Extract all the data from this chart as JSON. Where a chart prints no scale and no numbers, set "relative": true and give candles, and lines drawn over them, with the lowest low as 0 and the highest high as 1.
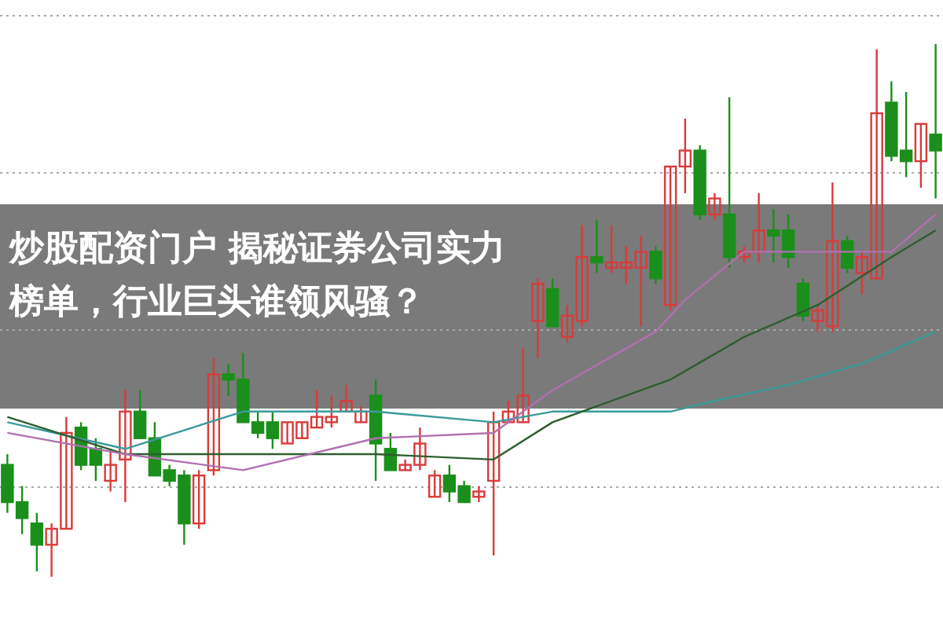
{
  "chart_data": {
    "type": "candlestick",
    "relative": true,
    "grid": "y",
    "title": "炒股配资门户 揭秘证券公司实力榜单，行业巨头谁领风骚？",
    "categories": [
      null,
      null,
      null,
      null,
      null,
      null,
      null,
      null,
      null,
      null,
      null,
      null,
      null,
      null,
      null,
      null,
      null,
      null,
      null,
      null,
      null,
      null,
      null,
      null,
      null,
      null,
      null,
      null,
      null,
      null,
      null,
      null,
      null,
      null,
      null,
      null,
      null,
      null,
      null,
      null,
      null,
      null,
      null,
      null,
      null,
      null,
      null,
      null,
      null,
      null,
      null,
      null,
      null,
      null,
      null,
      null,
      null,
      null,
      null,
      null,
      null,
      null,
      null,
      null
    ],
    "ohlc": [
      [
        0.21,
        0.23,
        0.12,
        0.14
      ],
      [
        0.14,
        0.17,
        0.08,
        0.11
      ],
      [
        0.1,
        0.12,
        0.01,
        0.06
      ],
      [
        0.06,
        0.1,
        0,
        0.09
      ],
      [
        0.09,
        0.3,
        0.09,
        0.27
      ],
      [
        0.28,
        0.29,
        0.2,
        0.21
      ],
      [
        0.24,
        0.26,
        0.18,
        0.21
      ],
      [
        0.18,
        0.24,
        0.16,
        0.21
      ],
      [
        0.22,
        0.35,
        0.14,
        0.31
      ],
      [
        0.31,
        0.35,
        0.26,
        0.26
      ],
      [
        0.26,
        0.29,
        0.19,
        0.19
      ],
      [
        0.2,
        0.21,
        0.17,
        0.18
      ],
      [
        0.19,
        0.2,
        0.06,
        0.1
      ],
      [
        0.1,
        0.2,
        0.09,
        0.19
      ],
      [
        0.2,
        0.41,
        0.19,
        0.38
      ],
      [
        0.38,
        0.4,
        0.34,
        0.37
      ],
      [
        0.37,
        0.42,
        0.29,
        0.29
      ],
      [
        0.29,
        0.31,
        0.26,
        0.27
      ],
      [
        0.29,
        0.31,
        0.24,
        0.26
      ],
      [
        0.25,
        0.29,
        0.25,
        0.29
      ],
      [
        0.26,
        0.29,
        0.26,
        0.29
      ],
      [
        0.28,
        0.35,
        0.28,
        0.3
      ],
      [
        0.29,
        0.34,
        0.28,
        0.3
      ],
      [
        0.31,
        0.36,
        0.31,
        0.33
      ],
      [
        0.29,
        0.32,
        0.29,
        0.31
      ],
      [
        0.34,
        0.37,
        0.18,
        0.25
      ],
      [
        0.24,
        0.27,
        0.2,
        0.2
      ],
      [
        0.2,
        0.22,
        0.2,
        0.21
      ],
      [
        0.21,
        0.28,
        0.2,
        0.25
      ],
      [
        0.15,
        0.2,
        0.15,
        0.19
      ],
      [
        0.19,
        0.21,
        0.14,
        0.16
      ],
      [
        0.17,
        0.18,
        0.14,
        0.14
      ],
      [
        0.15,
        0.17,
        0.14,
        0.16
      ],
      [
        0.18,
        0.31,
        0.04,
        0.29
      ],
      [
        0.29,
        0.33,
        0.29,
        0.31
      ],
      [
        0.29,
        0.43,
        0.29,
        0.34
      ],
      [
        0.48,
        0.56,
        0.41,
        0.55
      ],
      [
        0.54,
        0.56,
        0.47,
        0.47
      ],
      [
        0.45,
        0.51,
        0.44,
        0.49
      ],
      [
        0.48,
        0.66,
        0.47,
        0.6
      ],
      [
        0.6,
        0.67,
        0.57,
        0.59
      ],
      [
        0.58,
        0.66,
        0.57,
        0.59
      ],
      [
        0.58,
        0.62,
        0.55,
        0.59
      ],
      [
        0.58,
        0.64,
        0.47,
        0.61
      ],
      [
        0.61,
        0.62,
        0.55,
        0.56
      ],
      [
        0.51,
        0.77,
        0.5,
        0.77
      ],
      [
        0.77,
        0.86,
        0.72,
        0.8
      ],
      [
        0.8,
        0.81,
        0.67,
        0.68
      ],
      [
        0.68,
        0.72,
        0.67,
        0.71
      ],
      [
        0.68,
        0.9,
        0.58,
        0.6
      ],
      [
        0.6,
        0.62,
        0.59,
        0.61
      ],
      [
        0.61,
        0.72,
        0.59,
        0.65
      ],
      [
        0.65,
        0.69,
        0.59,
        0.64
      ],
      [
        0.65,
        0.68,
        0.58,
        0.6
      ],
      [
        0.55,
        0.56,
        0.48,
        0.49
      ],
      [
        0.48,
        0.51,
        0.46,
        0.5
      ],
      [
        0.47,
        0.74,
        0.46,
        0.63
      ],
      [
        0.63,
        0.64,
        0.57,
        0.58
      ],
      [
        0.57,
        0.61,
        0.53,
        0.6
      ],
      [
        0.56,
        0.99,
        0.56,
        0.87
      ],
      [
        0.89,
        0.93,
        0.78,
        0.79
      ],
      [
        0.8,
        0.91,
        0.75,
        0.78
      ],
      [
        0.78,
        0.85,
        0.73,
        0.85
      ],
      [
        0.83,
        1.0,
        0.71,
        0.8
      ]
    ],
    "colors": [
      "#1b8f1b",
      "#1b8f1b",
      "#1b8f1b",
      "#d93b3b",
      "#d93b3b",
      "#1b8f1b",
      "#1b8f1b",
      "#d93b3b",
      "#d93b3b",
      "#1b8f1b",
      "#1b8f1b",
      "#1b8f1b",
      "#1b8f1b",
      "#d93b3b",
      "#d93b3b",
      "#1b8f1b",
      "#1b8f1b",
      "#1b8f1b",
      "#1b8f1b",
      "#d93b3b",
      "#d93b3b",
      "#d93b3b",
      "#d93b3b",
      "#d93b3b",
      "#d93b3b",
      "#1b8f1b",
      "#1b8f1b",
      "#d93b3b",
      "#d93b3b",
      "#d93b3b",
      "#1b8f1b",
      "#1b8f1b",
      "#d93b3b",
      "#d93b3b",
      "#d93b3b",
      "#d93b3b",
      "#d93b3b",
      "#1b8f1b",
      "#d93b3b",
      "#d93b3b",
      "#1b8f1b",
      "#d93b3b",
      "#d93b3b",
      "#d93b3b",
      "#1b8f1b",
      "#d93b3b",
      "#d93b3b",
      "#1b8f1b",
      "#d93b3b",
      "#1b8f1b",
      "#d93b3b",
      "#d93b3b",
      "#1b8f1b",
      "#1b8f1b",
      "#1b8f1b",
      "#d93b3b",
      "#d93b3b",
      "#1b8f1b",
      "#d93b3b",
      "#d93b3b",
      "#1b8f1b",
      "#1b8f1b",
      "#d93b3b",
      "#1b8f1b"
    ],
    "series": [
      {
        "type": "line",
        "color": "#3a9a9a",
        "values": [
          0.29,
          null,
          null,
          null,
          null,
          null,
          null,
          null,
          0.24,
          null,
          null,
          null,
          null,
          null,
          null,
          null,
          0.31,
          null,
          null,
          null,
          null,
          null,
          null,
          null,
          null,
          0.31,
          null,
          null,
          null,
          null,
          null,
          null,
          null,
          0.29,
          null,
          null,
          null,
          0.31,
          null,
          null,
          null,
          null,
          null,
          null,
          null,
          0.31,
          null,
          null,
          0.33,
          null,
          null,
          null,
          null,
          0.36,
          null,
          null,
          null,
          null,
          0.4,
          null,
          null,
          null,
          null,
          0.46
        ]
      },
      {
        "type": "line",
        "color": "#2e5e2e",
        "values": [
          0.3,
          null,
          null,
          null,
          null,
          null,
          null,
          null,
          0.23,
          null,
          null,
          null,
          null,
          null,
          null,
          null,
          0.23,
          null,
          null,
          null,
          null,
          null,
          null,
          null,
          null,
          0.23,
          null,
          null,
          null,
          null,
          null,
          null,
          null,
          0.22,
          null,
          null,
          null,
          0.29,
          null,
          null,
          null,
          null,
          null,
          null,
          null,
          0.37,
          null,
          null,
          null,
          null,
          0.45,
          null,
          null,
          null,
          null,
          0.51,
          null,
          null,
          null,
          null,
          0.6,
          null,
          null,
          0.65
        ]
      },
      {
        "type": "line",
        "color": "#b070b0",
        "values": [
          0.27,
          null,
          null,
          null,
          null,
          null,
          null,
          null,
          0.23,
          null,
          null,
          null,
          null,
          null,
          null,
          null,
          0.2,
          null,
          null,
          null,
          null,
          null,
          null,
          null,
          null,
          0.26,
          null,
          null,
          null,
          null,
          null,
          null,
          null,
          0.27,
          null,
          null,
          null,
          0.35,
          null,
          null,
          null,
          null,
          null,
          null,
          0.46,
          null,
          0.52,
          null,
          null,
          null,
          0.61,
          null,
          null,
          null,
          null,
          0.61,
          null,
          null,
          null,
          null,
          0.61,
          null,
          null,
          0.68
        ]
      }
    ]
  }
}
